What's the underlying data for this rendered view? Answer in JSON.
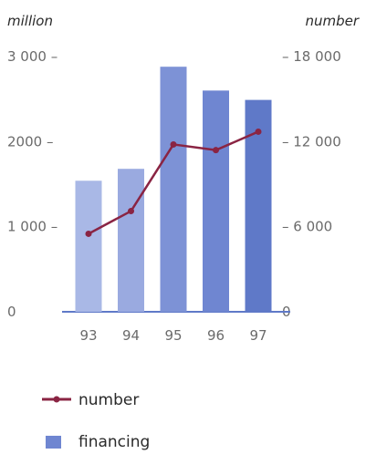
{
  "chart_data": {
    "type": "bar",
    "categories": [
      "93",
      "94",
      "95",
      "96",
      "97"
    ],
    "series": [
      {
        "name": "financing",
        "kind": "bar",
        "axis": "left",
        "values": [
          1540,
          1680,
          2880,
          2600,
          2490
        ],
        "colors": [
          "#a9b8e6",
          "#9aaae0",
          "#7d92d6",
          "#6f86d1",
          "#5f79c8"
        ]
      },
      {
        "name": "number",
        "kind": "line",
        "axis": "right",
        "values": [
          5500,
          7100,
          11800,
          11400,
          12700
        ],
        "color": "#8a2443"
      }
    ],
    "left_axis": {
      "title": "million",
      "ylim": [
        0,
        3000
      ],
      "ticks": [
        {
          "value": 0,
          "label": "0"
        },
        {
          "value": 1000,
          "label": "1 000 –"
        },
        {
          "value": 2000,
          "label": "2000 –"
        },
        {
          "value": 3000,
          "label": "3 000 –"
        }
      ]
    },
    "right_axis": {
      "title": "number",
      "ylim": [
        0,
        18000
      ],
      "ticks": [
        {
          "value": 0,
          "label": "0"
        },
        {
          "value": 6000,
          "label": "– 6 000"
        },
        {
          "value": 12000,
          "label": "– 12 000"
        },
        {
          "value": 18000,
          "label": "– 18 000"
        }
      ]
    },
    "legend": {
      "placement": "bottom-left",
      "entries": [
        "number",
        "financing"
      ]
    },
    "grid": false
  }
}
